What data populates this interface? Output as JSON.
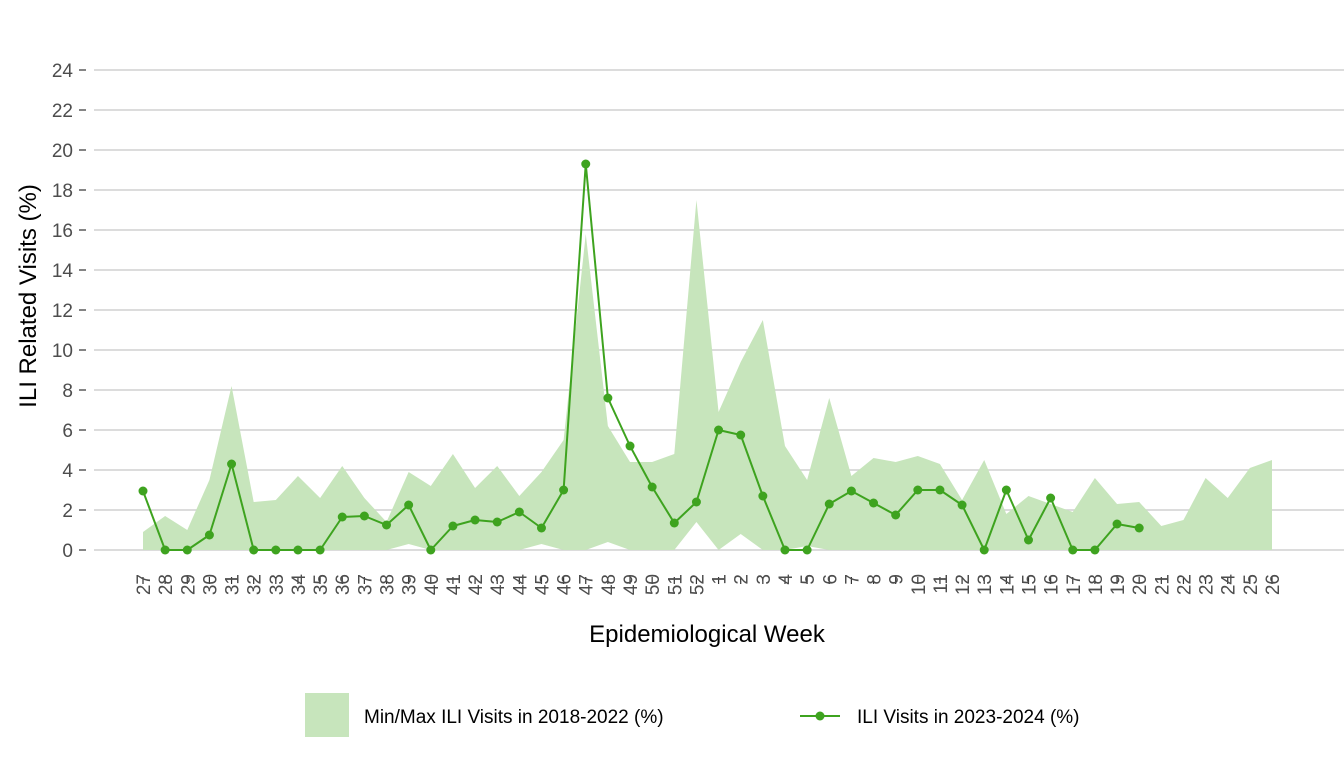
{
  "chart_data": {
    "type": "line",
    "xlabel": "Epidemiological Week",
    "ylabel": "ILI Related Visits (%)",
    "ylim": [
      0,
      24
    ],
    "yticks": [
      0,
      2,
      4,
      6,
      8,
      10,
      12,
      14,
      16,
      18,
      20,
      22,
      24
    ],
    "grid": "horizontal",
    "legend_position": "bottom",
    "colors": {
      "band": "#c7e5bc",
      "line": "#3ea31f",
      "grid": "#d0d0d0",
      "tick": "#4d4d4d"
    },
    "categories": [
      "27",
      "28",
      "29",
      "30",
      "31",
      "32",
      "33",
      "34",
      "35",
      "36",
      "37",
      "38",
      "39",
      "40",
      "41",
      "42",
      "43",
      "44",
      "45",
      "46",
      "47",
      "48",
      "49",
      "50",
      "51",
      "52",
      "1",
      "2",
      "3",
      "4",
      "5",
      "6",
      "7",
      "8",
      "9",
      "10",
      "11",
      "12",
      "13",
      "14",
      "15",
      "16",
      "17",
      "18",
      "19",
      "20",
      "21",
      "22",
      "23",
      "24",
      "25",
      "26"
    ],
    "series": [
      {
        "name": "Min/Max ILI Visits in 2018-2022 (%)",
        "type": "area-band",
        "min": [
          0,
          0,
          0,
          0,
          0,
          0,
          0,
          0,
          0,
          0,
          0,
          0,
          0.3,
          0,
          0,
          0,
          0,
          0,
          0.3,
          0,
          0,
          0.4,
          0,
          0,
          0,
          1.4,
          0,
          0.8,
          0,
          0,
          0.2,
          0,
          0,
          0,
          0,
          0,
          0,
          0,
          0,
          0,
          0,
          0,
          0,
          0,
          0,
          0,
          0,
          0,
          0,
          0,
          0,
          0
        ],
        "max": [
          0.9,
          1.7,
          1,
          3.5,
          8.2,
          2.4,
          2.5,
          3.7,
          2.6,
          4.2,
          2.6,
          1.4,
          3.9,
          3.2,
          4.8,
          3.1,
          4.2,
          2.7,
          3.9,
          5.5,
          15.8,
          6.2,
          4.4,
          4.4,
          4.8,
          17.5,
          6.9,
          9.4,
          11.5,
          5.2,
          3.5,
          7.6,
          3.7,
          4.6,
          4.4,
          4.7,
          4.3,
          2.5,
          4.5,
          1.8,
          2.7,
          2.3,
          1.9,
          3.6,
          2.3,
          2.4,
          1.2,
          1.5,
          3.6,
          2.6,
          4.1,
          4.5
        ]
      },
      {
        "name": "ILI Visits in 2023-2024 (%)",
        "type": "line",
        "values": [
          2.95,
          0,
          0,
          0.75,
          4.3,
          0,
          0,
          0,
          0,
          1.65,
          1.7,
          1.25,
          2.25,
          0,
          1.2,
          1.5,
          1.4,
          1.9,
          1.1,
          3,
          19.3,
          7.6,
          5.2,
          3.15,
          1.35,
          2.4,
          6,
          5.75,
          2.7,
          0,
          0,
          2.3,
          2.95,
          2.35,
          1.75,
          3,
          3,
          2.25,
          0,
          3,
          0.5,
          2.6,
          0,
          0,
          1.3,
          1.1,
          null,
          null,
          null,
          null,
          null,
          null
        ]
      }
    ]
  }
}
